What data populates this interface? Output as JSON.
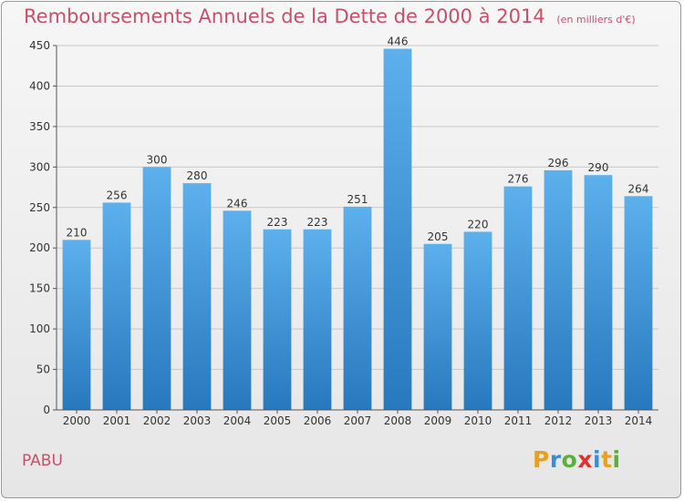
{
  "title": "Remboursements Annuels de la Dette de 2000 à 2014",
  "unit": "(en milliers d'€)",
  "commune": "PABU",
  "logo": {
    "parts": [
      "P",
      "r",
      "o",
      "x",
      "i",
      "t",
      "i"
    ],
    "colors": [
      "#e8a020",
      "#3a8ed8",
      "#5ab03a",
      "#e03030",
      "#3a8ed8",
      "#e8a020",
      "#5ab03a"
    ]
  },
  "colors": {
    "title": "#c9506a",
    "bar_top": "#5cb0ec",
    "bar_bottom": "#2878be",
    "grid": "#c8c8c8",
    "axis": "#555555"
  },
  "chart_data": {
    "type": "bar",
    "title": "Remboursements Annuels de la Dette de 2000 à 2014",
    "ylabel": "",
    "xlabel": "",
    "ylim": [
      0,
      450
    ],
    "yticks": [
      0,
      50,
      100,
      150,
      200,
      250,
      300,
      350,
      400,
      450
    ],
    "grid": true,
    "categories": [
      "2000",
      "2001",
      "2002",
      "2003",
      "2004",
      "2005",
      "2006",
      "2007",
      "2008",
      "2009",
      "2010",
      "2011",
      "2012",
      "2013",
      "2014"
    ],
    "values": [
      210,
      256,
      300,
      280,
      246,
      223,
      223,
      251,
      446,
      205,
      220,
      276,
      296,
      290,
      264
    ]
  }
}
